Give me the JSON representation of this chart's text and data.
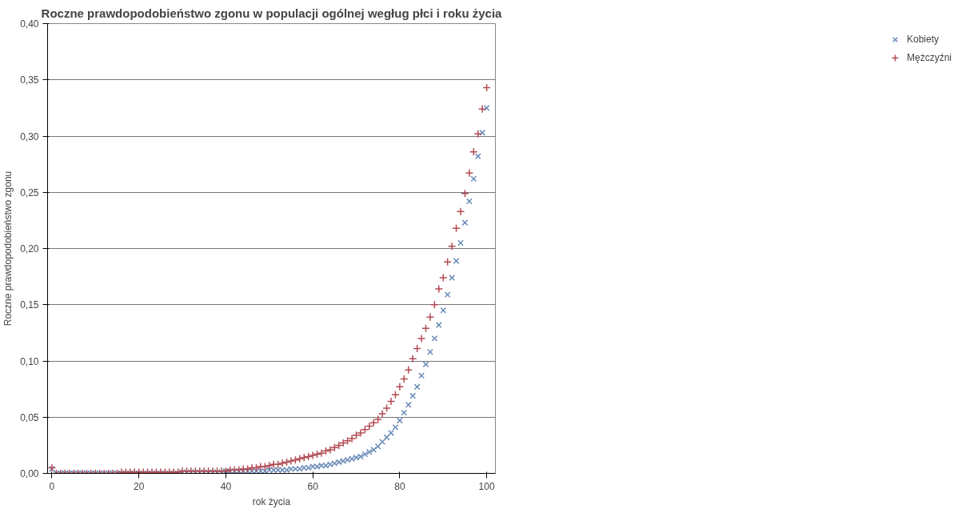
{
  "chart_data": {
    "type": "scatter",
    "title": "Roczne prawdopodobieństwo zgonu w populacji ogólnej wegług płci i roku życia",
    "xlabel": "rok życia",
    "ylabel": "Roczne prawdopodobieństwo zgonu",
    "x": [
      0,
      1,
      2,
      3,
      4,
      5,
      6,
      7,
      8,
      9,
      10,
      11,
      12,
      13,
      14,
      15,
      16,
      17,
      18,
      19,
      20,
      21,
      22,
      23,
      24,
      25,
      26,
      27,
      28,
      29,
      30,
      31,
      32,
      33,
      34,
      35,
      36,
      37,
      38,
      39,
      40,
      41,
      42,
      43,
      44,
      45,
      46,
      47,
      48,
      49,
      50,
      51,
      52,
      53,
      54,
      55,
      56,
      57,
      58,
      59,
      60,
      61,
      62,
      63,
      64,
      65,
      66,
      67,
      68,
      69,
      70,
      71,
      72,
      73,
      74,
      75,
      76,
      77,
      78,
      79,
      80,
      81,
      82,
      83,
      84,
      85,
      86,
      87,
      88,
      89,
      90,
      91,
      92,
      93,
      94,
      95,
      96,
      97,
      98,
      99,
      100
    ],
    "series": [
      {
        "name": "Kobiety",
        "color": "#6a8cb8",
        "marker": "x",
        "values": [
          0.004,
          0,
          0,
          0,
          0,
          0,
          0,
          0,
          0,
          0,
          0,
          0,
          0,
          0,
          0,
          0,
          0,
          0,
          0,
          0,
          0,
          0,
          0,
          0,
          0,
          0,
          0,
          0,
          0,
          0,
          0.001,
          0.001,
          0.001,
          0.001,
          0.001,
          0.001,
          0.001,
          0.001,
          0.001,
          0.001,
          0.002,
          0.002,
          0.002,
          0.002,
          0.002,
          0.002,
          0.002,
          0.002,
          0.002,
          0.002,
          0.003,
          0.003,
          0.003,
          0.003,
          0.003,
          0.004,
          0.004,
          0.004,
          0.005,
          0.005,
          0.006,
          0.006,
          0.007,
          0.007,
          0.008,
          0.009,
          0.01,
          0.011,
          0.012,
          0.013,
          0.014,
          0.015,
          0.017,
          0.019,
          0.021,
          0.024,
          0.028,
          0.032,
          0.036,
          0.041,
          0.047,
          0.054,
          0.061,
          0.069,
          0.077,
          0.087,
          0.097,
          0.108,
          0.12,
          0.132,
          0.145,
          0.159,
          0.174,
          0.189,
          0.205,
          0.223,
          0.242,
          0.262,
          0.282,
          0.303,
          0.325
        ]
      },
      {
        "name": "Mężczyźni",
        "color": "#b24a52",
        "marker": "cross",
        "values": [
          0.005,
          0,
          0,
          0,
          0,
          0,
          0,
          0,
          0,
          0,
          0,
          0,
          0,
          0,
          0,
          0,
          0.001,
          0.001,
          0.001,
          0.001,
          0.001,
          0.001,
          0.001,
          0.001,
          0.001,
          0.001,
          0.001,
          0.001,
          0.001,
          0.001,
          0.002,
          0.002,
          0.002,
          0.002,
          0.002,
          0.002,
          0.002,
          0.002,
          0.002,
          0.002,
          0.002,
          0.003,
          0.003,
          0.003,
          0.004,
          0.004,
          0.005,
          0.005,
          0.006,
          0.006,
          0.007,
          0.008,
          0.008,
          0.009,
          0.01,
          0.011,
          0.012,
          0.013,
          0.014,
          0.015,
          0.016,
          0.017,
          0.018,
          0.02,
          0.021,
          0.023,
          0.025,
          0.027,
          0.029,
          0.031,
          0.034,
          0.036,
          0.039,
          0.042,
          0.045,
          0.048,
          0.053,
          0.058,
          0.064,
          0.07,
          0.077,
          0.084,
          0.092,
          0.102,
          0.111,
          0.12,
          0.129,
          0.139,
          0.15,
          0.164,
          0.174,
          0.188,
          0.202,
          0.218,
          0.233,
          0.249,
          0.267,
          0.286,
          0.302,
          0.324,
          0.343
        ]
      }
    ],
    "xlim": [
      -1,
      102
    ],
    "xticks": [
      0,
      20,
      40,
      60,
      80,
      100
    ],
    "ylim": [
      0,
      0.4
    ],
    "yticks": [
      {
        "value": 0,
        "label": "0,00"
      },
      {
        "value": 0.05,
        "label": "0,05"
      },
      {
        "value": 0.1,
        "label": "0,10"
      },
      {
        "value": 0.15,
        "label": "0,15"
      },
      {
        "value": 0.2,
        "label": "0,20"
      },
      {
        "value": 0.25,
        "label": "0,25"
      },
      {
        "value": 0.3,
        "label": "0,30"
      },
      {
        "value": 0.35,
        "label": "0,35"
      },
      {
        "value": 0.4,
        "label": "0,40"
      }
    ],
    "grid": "y",
    "legend": "right"
  }
}
